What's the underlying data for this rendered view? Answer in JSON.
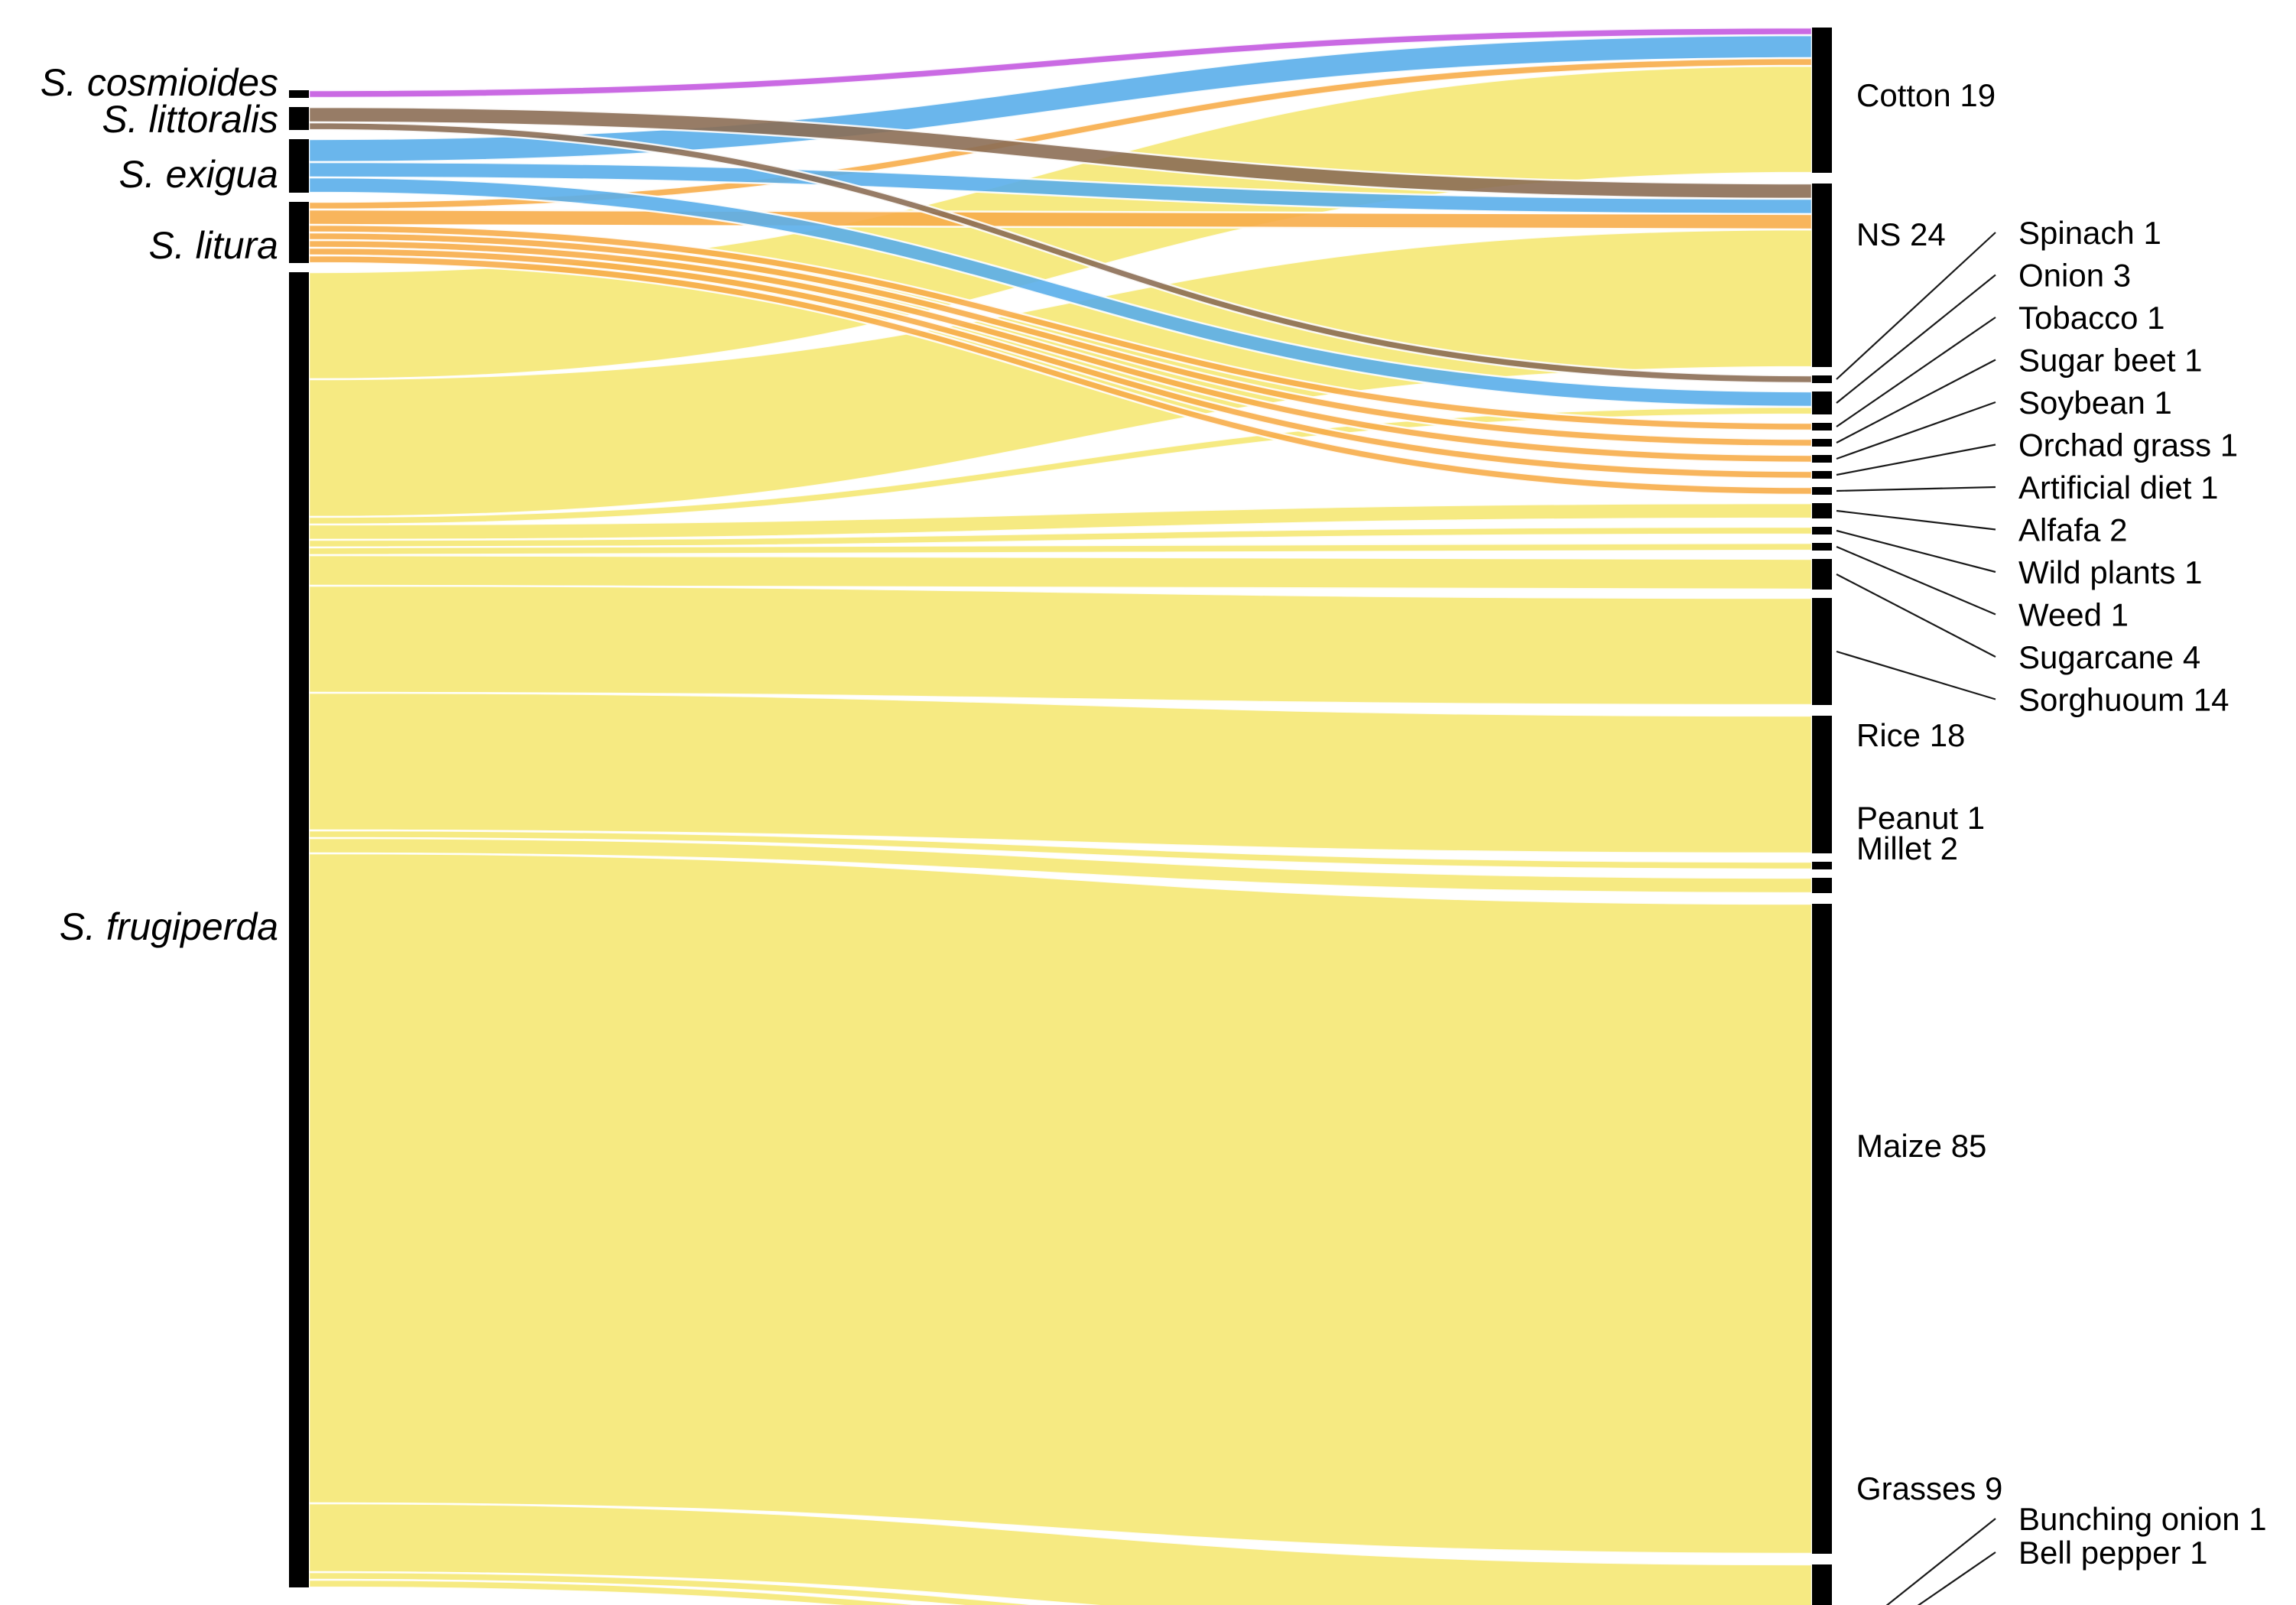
{
  "chart_data": {
    "type": "sankey",
    "title": "",
    "palette": {
      "S. cosmioides": "#c45ae0",
      "S. littoralis": "#8c6e55",
      "S. exigua": "#5aaeea",
      "S. litura": "#f7ad4a",
      "S. frugiperda": "#f6ea80",
      "node": "#000000"
    },
    "sources": [
      {
        "name": "S. cosmioides",
        "label": "S. cosmioides"
      },
      {
        "name": "S. littoralis",
        "label": "S. littoralis"
      },
      {
        "name": "S. exigua",
        "label": "S. exigua"
      },
      {
        "name": "S. litura",
        "label": "S. litura"
      },
      {
        "name": "S. frugiperda",
        "label": "S. frugiperda"
      }
    ],
    "targets": [
      {
        "name": "Cotton",
        "label": "Cotton 19",
        "value": 19
      },
      {
        "name": "NS",
        "label": "NS 24",
        "value": 24
      },
      {
        "name": "Spinach",
        "label": "Spinach 1",
        "value": 1
      },
      {
        "name": "Onion",
        "label": "Onion 3",
        "value": 3
      },
      {
        "name": "Tobacco",
        "label": "Tobacco 1",
        "value": 1
      },
      {
        "name": "Sugar beet",
        "label": "Sugar beet 1",
        "value": 1
      },
      {
        "name": "Soybean",
        "label": "Soybean 1",
        "value": 1
      },
      {
        "name": "Orchad grass",
        "label": "Orchad grass 1",
        "value": 1
      },
      {
        "name": "Artificial diet",
        "label": "Artificial diet 1",
        "value": 1
      },
      {
        "name": "Alfafa",
        "label": "Alfafa 2",
        "value": 2
      },
      {
        "name": "Wild plants",
        "label": "Wild plants 1",
        "value": 1
      },
      {
        "name": "Weed",
        "label": "Weed 1",
        "value": 1
      },
      {
        "name": "Sugarcane",
        "label": "Sugarcane 4",
        "value": 4
      },
      {
        "name": "Sorghuoum",
        "label": "Sorghuoum 14",
        "value": 14
      },
      {
        "name": "Rice",
        "label": "Rice 18",
        "value": 18
      },
      {
        "name": "Peanut",
        "label": "Peanut 1",
        "value": 1
      },
      {
        "name": "Millet",
        "label": "Millet 2",
        "value": 2
      },
      {
        "name": "Maize",
        "label": "Maize 85",
        "value": 85
      },
      {
        "name": "Grasses",
        "label": "Grasses 9",
        "value": 9
      },
      {
        "name": "Bunching onion",
        "label": "Bunching onion 1",
        "value": 1
      },
      {
        "name": "Bell pepper",
        "label": "Bell pepper 1",
        "value": 1
      }
    ],
    "links": [
      {
        "source": "S. cosmioides",
        "target": "Cotton",
        "value": 1
      },
      {
        "source": "S. exigua",
        "target": "Cotton",
        "value": 3
      },
      {
        "source": "S. litura",
        "target": "Cotton",
        "value": 1
      },
      {
        "source": "S. frugiperda",
        "target": "Cotton",
        "value": 14
      },
      {
        "source": "S. littoralis",
        "target": "NS",
        "value": 2
      },
      {
        "source": "S. exigua",
        "target": "NS",
        "value": 2
      },
      {
        "source": "S. litura",
        "target": "NS",
        "value": 2
      },
      {
        "source": "S. frugiperda",
        "target": "NS",
        "value": 18
      },
      {
        "source": "S. littoralis",
        "target": "Spinach",
        "value": 1
      },
      {
        "source": "S. exigua",
        "target": "Onion",
        "value": 2
      },
      {
        "source": "S. frugiperda",
        "target": "Onion",
        "value": 1
      },
      {
        "source": "S. litura",
        "target": "Tobacco",
        "value": 1
      },
      {
        "source": "S. litura",
        "target": "Sugar beet",
        "value": 1
      },
      {
        "source": "S. litura",
        "target": "Soybean",
        "value": 1
      },
      {
        "source": "S. litura",
        "target": "Orchad grass",
        "value": 1
      },
      {
        "source": "S. litura",
        "target": "Artificial diet",
        "value": 1
      },
      {
        "source": "S. frugiperda",
        "target": "Alfafa",
        "value": 2
      },
      {
        "source": "S. frugiperda",
        "target": "Wild plants",
        "value": 1
      },
      {
        "source": "S. frugiperda",
        "target": "Weed",
        "value": 1
      },
      {
        "source": "S. frugiperda",
        "target": "Sugarcane",
        "value": 4
      },
      {
        "source": "S. frugiperda",
        "target": "Sorghuoum",
        "value": 14
      },
      {
        "source": "S. frugiperda",
        "target": "Rice",
        "value": 18
      },
      {
        "source": "S. frugiperda",
        "target": "Peanut",
        "value": 1
      },
      {
        "source": "S. frugiperda",
        "target": "Millet",
        "value": 2
      },
      {
        "source": "S. frugiperda",
        "target": "Maize",
        "value": 85
      },
      {
        "source": "S. frugiperda",
        "target": "Grasses",
        "value": 9
      },
      {
        "source": "S. frugiperda",
        "target": "Bunching onion",
        "value": 1
      },
      {
        "source": "S. frugiperda",
        "target": "Bell pepper",
        "value": 1
      }
    ]
  }
}
